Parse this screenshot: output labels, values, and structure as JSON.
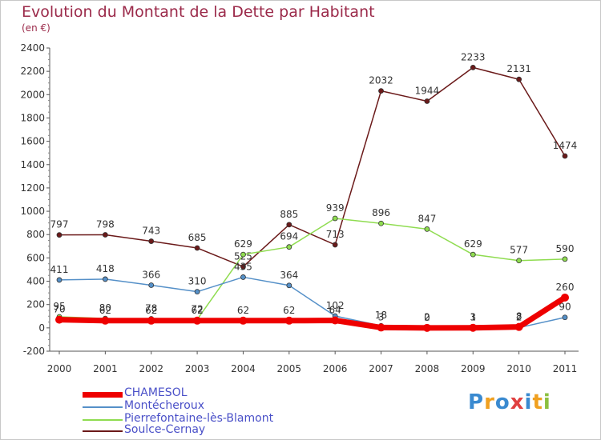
{
  "chart_data": {
    "type": "line",
    "title": "Evolution du Montant de la Dette par Habitant",
    "subtitle": "(en €)",
    "categories": [
      "2000",
      "2001",
      "2002",
      "2003",
      "2004",
      "2005",
      "2006",
      "2007",
      "2008",
      "2009",
      "2010",
      "2011"
    ],
    "ylim": [
      -200,
      2400
    ],
    "yticks": [
      -200,
      0,
      200,
      400,
      600,
      800,
      1000,
      1200,
      1400,
      1600,
      1800,
      2000,
      2200,
      2400
    ],
    "grid": false,
    "series": [
      {
        "name": "Soulce-Cernay",
        "color": "#6b1a1a",
        "values": [
          797,
          798,
          743,
          685,
          525,
          885,
          713,
          2032,
          1944,
          2233,
          2131,
          1474
        ],
        "labels": [
          "797",
          "798",
          "743",
          "685",
          "525",
          "885",
          "713",
          "2032",
          "1944",
          "2233",
          "2131",
          "1474"
        ]
      },
      {
        "name": "Pierrefontaine-lès-Blamont",
        "color": "#8fdc50",
        "values": [
          95,
          80,
          78,
          72,
          629,
          694,
          939,
          896,
          847,
          629,
          577,
          590
        ],
        "labels": [
          "95",
          "80",
          "78",
          "72",
          "629",
          "694",
          "939",
          "896",
          "847",
          "629",
          "577",
          "590"
        ]
      },
      {
        "name": "Montécheroux",
        "color": "#5590c8",
        "values": [
          411,
          418,
          366,
          310,
          435,
          364,
          102,
          18,
          2,
          3,
          2,
          90
        ],
        "labels": [
          "411",
          "418",
          "366",
          "310",
          "435",
          "364",
          "102",
          "18",
          "2",
          "3",
          "2",
          "90"
        ]
      },
      {
        "name": "CHAMESOL",
        "color": "#ee0000",
        "values": [
          70,
          62,
          62,
          62,
          62,
          62,
          64,
          3,
          0,
          1,
          8,
          260
        ],
        "labels": [
          "70",
          "62",
          "62",
          "62",
          "62",
          "62",
          "64",
          "3",
          "0",
          "1",
          "8",
          "260"
        ]
      }
    ],
    "legend": [
      "CHAMESOL",
      "Montécheroux",
      "Pierrefontaine-lès-Blamont",
      "Soulce-Cernay"
    ],
    "legend_position": "bottom-left"
  },
  "logo": {
    "text": "Proxiti",
    "letters": [
      "P",
      "r",
      "o",
      "x",
      "i",
      "t",
      "i"
    ],
    "colors": [
      "#3a8ad0",
      "#f0a020",
      "#3a8ad0",
      "#e04040",
      "#3a8ad0",
      "#f0a020",
      "#8cc040"
    ]
  }
}
